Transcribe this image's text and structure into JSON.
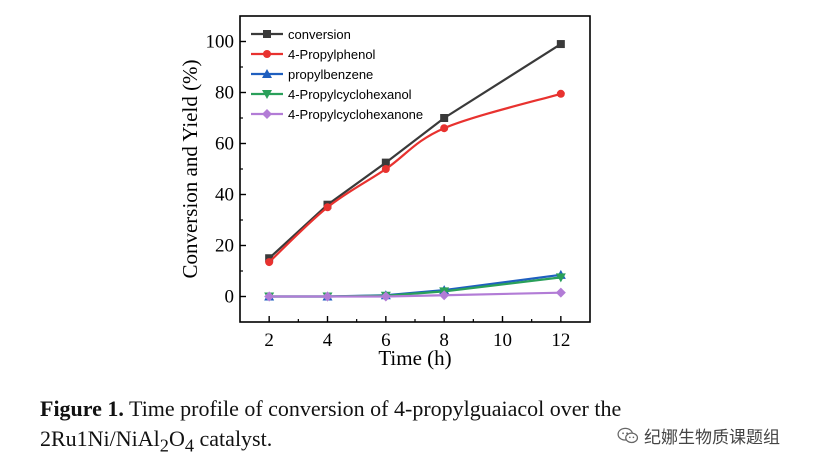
{
  "chart_data": {
    "type": "line",
    "xlabel": "Time (h)",
    "ylabel": "Conversion and Yield (%)",
    "xlim": [
      1,
      13
    ],
    "ylim": [
      -10,
      110
    ],
    "xticks": [
      2,
      4,
      6,
      8,
      10,
      12
    ],
    "yticks": [
      0,
      20,
      40,
      60,
      80,
      100
    ],
    "legend_position": "top-left",
    "series": [
      {
        "name": "conversion",
        "color": "#3a3a3a",
        "marker": "square",
        "x": [
          2,
          4,
          6,
          8,
          12
        ],
        "values": [
          15,
          36,
          52.5,
          70,
          99
        ]
      },
      {
        "name": "4-Propylphenol",
        "color": "#e8322f",
        "marker": "circle",
        "x": [
          2,
          4,
          6,
          8,
          12
        ],
        "values": [
          13.5,
          35,
          50,
          66,
          79.5
        ]
      },
      {
        "name": "propylbenzene",
        "color": "#1f5fbf",
        "marker": "triangle-up",
        "x": [
          2,
          4,
          6,
          8,
          12
        ],
        "values": [
          0,
          0,
          0.5,
          2.5,
          8.5
        ]
      },
      {
        "name": "4-Propylcyclohexanol",
        "color": "#2aa05a",
        "marker": "triangle-down",
        "x": [
          2,
          4,
          6,
          8,
          12
        ],
        "values": [
          0,
          0,
          0.3,
          2,
          7.5
        ]
      },
      {
        "name": "4-Propylcyclohexanone",
        "color": "#b27cd6",
        "marker": "diamond",
        "x": [
          2,
          4,
          6,
          8,
          12
        ],
        "values": [
          0,
          0,
          0,
          0.5,
          1.5
        ]
      }
    ]
  },
  "caption": {
    "label": "Figure 1.",
    "text_line1": "Time profile of conversion of 4-propylguaiacol over the",
    "text_line2_pre": "2Ru1Ni/NiAl",
    "sub1": "2",
    "text_line2_mid": "O",
    "sub2": "4",
    "text_line2_post": " catalyst."
  },
  "watermark": {
    "text": "纪娜生物质课题组",
    "icon": "wechat-icon"
  }
}
